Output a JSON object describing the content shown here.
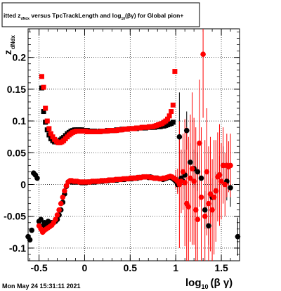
{
  "title": {
    "prefix": "itted  z",
    "sub1": "dNdx",
    "mid": " versus TpcTrackLength and log",
    "sub2": "10",
    "suffix": "(βγ) for Global pion+"
  },
  "footer": {
    "timestamp": "Mon May 24 15:31:11 2021"
  },
  "chart_data": {
    "type": "scatter",
    "xlabel": {
      "main": "log",
      "sub": "10",
      "tail": "(β γ)"
    },
    "ylabel": {
      "main": "z",
      "sub": "dNdx"
    },
    "xlim": [
      -0.62,
      1.7
    ],
    "ylim": [
      -0.12,
      0.245
    ],
    "x_ticks": [
      {
        "v": -0.5,
        "label": "-0.5"
      },
      {
        "v": 0,
        "label": "0"
      },
      {
        "v": 0.5,
        "label": "0.5"
      },
      {
        "v": 1,
        "label": "1"
      },
      {
        "v": 1.5,
        "label": "1.5"
      }
    ],
    "y_ticks": [
      {
        "v": -0.1,
        "label": "-0.1"
      },
      {
        "v": -0.05,
        "label": "-0.05"
      },
      {
        "v": 0,
        "label": "0"
      },
      {
        "v": 0.05,
        "label": "0.05"
      },
      {
        "v": 0.1,
        "label": "0.1"
      },
      {
        "v": 0.15,
        "label": "0.15"
      },
      {
        "v": 0.2,
        "label": "0.2"
      }
    ],
    "grid": true,
    "series": [
      {
        "marker": "square",
        "color": "#000000",
        "x": [
          -0.47,
          -0.45,
          -0.43,
          -0.41,
          -0.39,
          -0.37,
          -0.35,
          -0.33,
          -0.31,
          -0.29,
          -0.27,
          -0.25,
          -0.23,
          -0.21,
          -0.19,
          -0.17,
          -0.15,
          -0.13,
          -0.11,
          -0.09,
          -0.07,
          -0.05,
          -0.03,
          -0.01,
          0.01,
          0.03,
          0.05,
          0.07,
          0.09,
          0.11,
          0.13,
          0.15,
          0.17,
          0.19,
          0.21,
          0.23,
          0.25,
          0.27,
          0.29,
          0.31,
          0.33,
          0.35,
          0.37,
          0.39,
          0.41,
          0.43,
          0.45,
          0.47,
          0.49,
          0.51,
          0.53,
          0.55,
          0.57,
          0.59,
          0.61,
          0.63,
          0.65,
          0.67,
          0.69,
          0.71,
          0.73,
          0.75,
          0.77,
          0.79,
          0.81,
          0.83,
          0.85,
          0.87,
          0.89,
          0.91,
          0.93,
          0.95,
          0.97
        ],
        "y": [
          0.152,
          0.115,
          0.098,
          0.086,
          0.078,
          0.072,
          0.069,
          0.067,
          0.067,
          0.068,
          0.07,
          0.072,
          0.074,
          0.077,
          0.08,
          0.082,
          0.084,
          0.085,
          0.086,
          0.086,
          0.086,
          0.086,
          0.086,
          0.085,
          0.085,
          0.085,
          0.084,
          0.084,
          0.084,
          0.084,
          0.083,
          0.083,
          0.084,
          0.084,
          0.084,
          0.084,
          0.085,
          0.085,
          0.085,
          0.085,
          0.085,
          0.086,
          0.086,
          0.086,
          0.087,
          0.087,
          0.087,
          0.087,
          0.088,
          0.088,
          0.088,
          0.088,
          0.088,
          0.089,
          0.089,
          0.089,
          0.089,
          0.089,
          0.09,
          0.09,
          0.09,
          0.09,
          0.09,
          0.091,
          0.091,
          0.091,
          0.092,
          0.092,
          0.093,
          0.094,
          0.095,
          0.096,
          0.098
        ],
        "err": []
      },
      {
        "marker": "square",
        "color": "#ff0000",
        "x": [
          -0.47,
          -0.45,
          -0.43,
          -0.41,
          -0.39,
          -0.37,
          -0.35,
          -0.33,
          -0.31,
          -0.29,
          -0.27,
          -0.25,
          -0.23,
          -0.21,
          -0.19,
          -0.17,
          -0.15,
          -0.13,
          -0.11,
          -0.09,
          -0.07,
          -0.05,
          -0.03,
          -0.01,
          0.01,
          0.03,
          0.05,
          0.07,
          0.09,
          0.11,
          0.13,
          0.15,
          0.17,
          0.19,
          0.21,
          0.23,
          0.25,
          0.27,
          0.29,
          0.31,
          0.33,
          0.35,
          0.37,
          0.39,
          0.41,
          0.43,
          0.45,
          0.47,
          0.49,
          0.51,
          0.53,
          0.55,
          0.57,
          0.59,
          0.61,
          0.63,
          0.65,
          0.67,
          0.69,
          0.71,
          0.73,
          0.75,
          0.77,
          0.79,
          0.81,
          0.83,
          0.85,
          0.87,
          0.89,
          0.91,
          0.93,
          0.95,
          0.97,
          0.99
        ],
        "y": [
          0.17,
          0.153,
          0.12,
          0.1,
          0.088,
          0.08,
          0.075,
          0.071,
          0.068,
          0.066,
          0.066,
          0.067,
          0.069,
          0.072,
          0.075,
          0.078,
          0.08,
          0.082,
          0.083,
          0.084,
          0.084,
          0.084,
          0.084,
          0.084,
          0.084,
          0.083,
          0.083,
          0.083,
          0.083,
          0.083,
          0.083,
          0.083,
          0.083,
          0.084,
          0.084,
          0.084,
          0.084,
          0.085,
          0.085,
          0.085,
          0.085,
          0.085,
          0.086,
          0.086,
          0.086,
          0.087,
          0.087,
          0.087,
          0.088,
          0.088,
          0.088,
          0.088,
          0.089,
          0.089,
          0.089,
          0.09,
          0.09,
          0.09,
          0.09,
          0.091,
          0.091,
          0.091,
          0.092,
          0.093,
          0.094,
          0.095,
          0.096,
          0.098,
          0.1,
          0.103,
          0.108,
          0.115,
          0.125,
          0.178
        ],
        "err": []
      },
      {
        "marker": "circle",
        "color": "#000000",
        "x": [
          -0.62,
          -0.6,
          -0.58,
          -0.56,
          -0.54,
          -0.52,
          -0.5,
          -0.48,
          -0.46,
          -0.44,
          -0.42,
          -0.4,
          -0.38,
          -0.36,
          -0.34,
          -0.32,
          -0.3,
          -0.28,
          -0.26,
          -0.24,
          -0.22,
          -0.2,
          -0.18,
          -0.16,
          -0.14,
          -0.12,
          -0.1,
          -0.08,
          -0.06,
          -0.04,
          -0.02,
          0.0,
          0.02,
          0.04,
          0.06,
          0.08,
          0.1,
          0.12,
          0.14,
          0.16,
          0.18,
          0.2,
          0.22,
          0.24,
          0.26,
          0.28,
          0.3,
          0.32,
          0.34,
          0.36,
          0.38,
          0.4,
          0.42,
          0.44,
          0.46,
          0.48,
          0.5,
          0.52,
          0.54,
          0.56,
          0.58,
          0.6,
          0.62,
          0.64,
          0.66,
          0.68,
          0.7,
          0.72,
          0.74,
          0.76,
          0.78,
          0.8,
          0.82,
          0.84,
          0.86,
          0.88,
          0.9,
          0.92,
          0.94,
          0.96,
          0.98,
          1.0,
          1.02,
          1.04,
          1.06,
          1.08,
          1.1,
          1.12,
          1.16,
          1.2,
          1.24,
          1.28,
          1.32,
          1.36,
          1.4,
          1.44,
          1.48,
          1.52,
          1.56,
          1.6,
          1.68
        ],
        "y": [
          -0.082,
          -0.087,
          -0.072,
          0.018,
          0.015,
          0.01,
          -0.058,
          -0.055,
          -0.065,
          -0.06,
          -0.065,
          -0.058,
          -0.062,
          -0.06,
          -0.06,
          -0.058,
          -0.055,
          -0.048,
          -0.04,
          -0.028,
          -0.015,
          -0.003,
          0.004,
          0.005,
          0.004,
          0.004,
          0.004,
          0.004,
          0.004,
          0.003,
          0.003,
          0.003,
          0.003,
          0.004,
          0.004,
          0.004,
          0.004,
          0.004,
          0.005,
          0.005,
          0.005,
          0.005,
          0.006,
          0.006,
          0.006,
          0.007,
          0.007,
          0.007,
          0.007,
          0.007,
          0.008,
          0.008,
          0.008,
          0.008,
          0.009,
          0.009,
          0.009,
          0.009,
          0.01,
          0.01,
          0.01,
          0.011,
          0.011,
          0.012,
          0.012,
          0.012,
          0.011,
          0.012,
          0.011,
          0.01,
          0.01,
          0.01,
          0.009,
          0.009,
          0.008,
          0.009,
          0.01,
          0.011,
          0.012,
          0.01,
          0.008,
          0.005,
          0.0,
          0.075,
          0.01,
          0.005,
          0.015,
          0.085,
          0.035,
          0.025,
          0.02,
          0.01,
          -0.04,
          -0.065,
          -0.02,
          -0.01,
          0.015,
          0.03,
          0.005,
          -0.005,
          -0.082
        ],
        "err": [
          0,
          0,
          0,
          0,
          0,
          0,
          0,
          0,
          0,
          0,
          0,
          0,
          0,
          0,
          0,
          0,
          0,
          0,
          0,
          0,
          0,
          0,
          0,
          0,
          0,
          0,
          0,
          0,
          0,
          0,
          0,
          0,
          0,
          0,
          0,
          0,
          0,
          0,
          0,
          0,
          0,
          0,
          0,
          0,
          0,
          0,
          0,
          0,
          0,
          0,
          0,
          0,
          0,
          0,
          0,
          0,
          0,
          0,
          0,
          0,
          0,
          0,
          0,
          0,
          0,
          0,
          0,
          0,
          0,
          0,
          0,
          0,
          0,
          0,
          0,
          0,
          0,
          0,
          0,
          0,
          0,
          0.01,
          0.012,
          0.07,
          0.012,
          0.012,
          0.04,
          0.03,
          0.03,
          0.03,
          0.03,
          0.03,
          0.03,
          0.03,
          0.03,
          0.03,
          0.03,
          0.03,
          0.03,
          0.03,
          0.03
        ]
      },
      {
        "marker": "circle",
        "color": "#ff0000",
        "x": [
          -0.5,
          -0.48,
          -0.46,
          -0.44,
          -0.42,
          -0.4,
          -0.38,
          -0.36,
          -0.34,
          -0.32,
          -0.3,
          -0.28,
          -0.26,
          -0.24,
          -0.22,
          -0.2,
          -0.18,
          -0.16,
          -0.14,
          -0.12,
          -0.1,
          -0.08,
          -0.06,
          -0.04,
          -0.02,
          0.0,
          0.02,
          0.04,
          0.06,
          0.08,
          0.1,
          0.12,
          0.14,
          0.16,
          0.18,
          0.2,
          0.22,
          0.24,
          0.26,
          0.28,
          0.3,
          0.32,
          0.34,
          0.36,
          0.38,
          0.4,
          0.42,
          0.44,
          0.46,
          0.48,
          0.5,
          0.52,
          0.54,
          0.56,
          0.58,
          0.6,
          0.62,
          0.64,
          0.66,
          0.68,
          0.7,
          0.72,
          0.74,
          0.76,
          0.78,
          0.8,
          0.82,
          0.84,
          0.86,
          0.88,
          0.9,
          0.92,
          0.94,
          0.96,
          0.98,
          1.0,
          1.02,
          1.04,
          1.06,
          1.08,
          1.1,
          1.12,
          1.14,
          1.16,
          1.18,
          1.2,
          1.22,
          1.24,
          1.26,
          1.28,
          1.3,
          1.32,
          1.34,
          1.36,
          1.38,
          1.4,
          1.42,
          1.44,
          1.46,
          1.48,
          1.5,
          1.52,
          1.54,
          1.56,
          1.58,
          1.6
        ],
        "y": [
          -0.065,
          -0.07,
          -0.075,
          -0.072,
          -0.07,
          -0.068,
          -0.066,
          -0.064,
          -0.06,
          -0.055,
          -0.048,
          -0.04,
          -0.03,
          -0.02,
          -0.01,
          -0.002,
          0.004,
          0.006,
          0.006,
          0.005,
          0.005,
          0.005,
          0.004,
          0.004,
          0.004,
          0.004,
          0.004,
          0.004,
          0.004,
          0.005,
          0.005,
          0.005,
          0.005,
          0.005,
          0.006,
          0.006,
          0.006,
          0.006,
          0.007,
          0.007,
          0.007,
          0.007,
          0.008,
          0.008,
          0.008,
          0.008,
          0.009,
          0.009,
          0.009,
          0.009,
          0.01,
          0.01,
          0.01,
          0.01,
          0.011,
          0.011,
          0.011,
          0.012,
          0.012,
          0.012,
          0.012,
          0.011,
          0.011,
          0.01,
          0.01,
          0.01,
          0.009,
          0.009,
          0.01,
          0.01,
          0.011,
          0.012,
          0.013,
          0.012,
          0.01,
          0.008,
          0.005,
          0.0,
          0.005,
          0.02,
          0.003,
          -0.03,
          -0.035,
          0.01,
          0.025,
          0.005,
          -0.04,
          -0.055,
          0.065,
          -0.02,
          0.205,
          -0.05,
          0.02,
          -0.03,
          -0.015,
          -0.04,
          -0.02,
          -0.01,
          0.012,
          0.015,
          0.005,
          0.03,
          0.0,
          0.03,
          0.028,
          0.03
        ],
        "err": [
          0,
          0,
          0,
          0,
          0,
          0,
          0,
          0,
          0,
          0,
          0,
          0,
          0,
          0,
          0,
          0,
          0,
          0,
          0,
          0,
          0,
          0,
          0,
          0,
          0,
          0,
          0,
          0,
          0,
          0,
          0,
          0,
          0,
          0,
          0,
          0,
          0,
          0,
          0,
          0,
          0,
          0,
          0,
          0,
          0,
          0,
          0,
          0,
          0,
          0,
          0,
          0,
          0,
          0,
          0,
          0,
          0,
          0,
          0,
          0,
          0,
          0,
          0,
          0,
          0,
          0,
          0,
          0,
          0,
          0,
          0,
          0,
          0,
          0,
          0,
          0.015,
          0.02,
          0.1,
          0.05,
          0.06,
          0.1,
          0.12,
          0.11,
          0.1,
          0.12,
          0.1,
          0.13,
          0.12,
          0.1,
          0.11,
          0.1,
          0.12,
          0.1,
          0.09,
          0.09,
          0.08,
          0.09,
          0.08,
          0.07,
          0.08,
          0.06,
          0.06,
          0.05,
          0.05,
          0.04,
          0.05
        ]
      }
    ]
  }
}
